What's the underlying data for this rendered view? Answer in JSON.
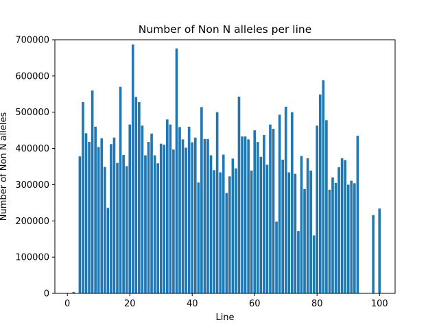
{
  "chart_data": {
    "type": "bar",
    "title": "Number of Non N alleles per line",
    "xlabel": "Line",
    "ylabel": "Number of Non N alleles",
    "xlim": [
      -4,
      105
    ],
    "ylim": [
      0,
      700000
    ],
    "xticks": [
      0,
      20,
      40,
      60,
      80,
      100
    ],
    "yticks": [
      0,
      100000,
      200000,
      300000,
      400000,
      500000,
      600000,
      700000
    ],
    "xtick_labels": [
      "0",
      "20",
      "40",
      "60",
      "80",
      "100"
    ],
    "ytick_labels": [
      "0",
      "100000",
      "200000",
      "300000",
      "400000",
      "500000",
      "600000",
      "700000"
    ],
    "bar_color": "#1f77b4",
    "grid": false,
    "x": [
      0,
      2,
      4,
      5,
      6,
      7,
      8,
      9,
      10,
      11,
      12,
      13,
      14,
      15,
      16,
      17,
      18,
      19,
      20,
      21,
      22,
      23,
      24,
      25,
      26,
      27,
      28,
      29,
      30,
      31,
      32,
      33,
      34,
      35,
      36,
      37,
      38,
      39,
      40,
      41,
      42,
      43,
      44,
      45,
      46,
      47,
      48,
      49,
      50,
      51,
      52,
      53,
      54,
      55,
      56,
      57,
      58,
      59,
      60,
      61,
      62,
      63,
      64,
      65,
      66,
      67,
      68,
      69,
      70,
      71,
      72,
      73,
      74,
      75,
      76,
      77,
      78,
      79,
      80,
      81,
      82,
      83,
      84,
      85,
      86,
      87,
      88,
      89,
      90,
      91,
      92,
      93,
      98,
      100
    ],
    "values": [
      500,
      4000,
      378000,
      528000,
      442000,
      418000,
      560000,
      460000,
      404000,
      428000,
      349000,
      236000,
      412000,
      430000,
      360000,
      570000,
      382000,
      351000,
      466000,
      687000,
      542000,
      528000,
      463000,
      381000,
      418000,
      441000,
      381000,
      359000,
      413000,
      410000,
      480000,
      466000,
      397000,
      676000,
      459000,
      425000,
      402000,
      460000,
      417000,
      430000,
      306000,
      514000,
      426000,
      426000,
      381000,
      340000,
      500000,
      334000,
      383000,
      277000,
      323000,
      372000,
      345000,
      543000,
      433000,
      433000,
      425000,
      339000,
      450000,
      418000,
      377000,
      437000,
      355000,
      466000,
      454000,
      198000,
      493000,
      369000,
      515000,
      334000,
      500000,
      330000,
      172000,
      379000,
      288000,
      373000,
      339000,
      160000,
      463000,
      549000,
      588000,
      478000,
      286000,
      320000,
      305000,
      348000,
      373000,
      368000,
      300000,
      311000,
      304000,
      435000,
      216000,
      234000
    ]
  }
}
